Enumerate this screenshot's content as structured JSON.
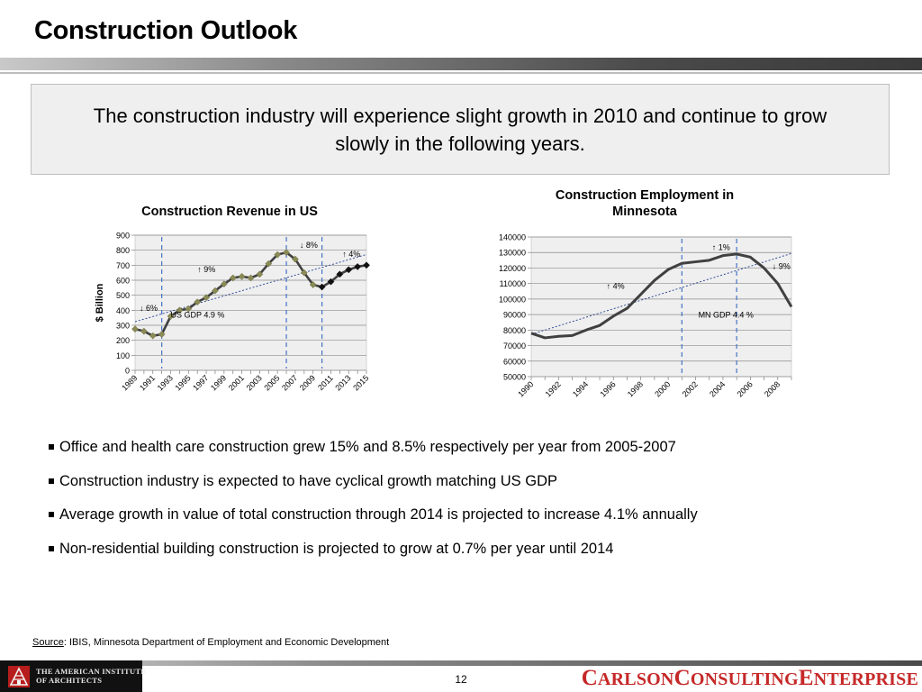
{
  "slide": {
    "title": "Construction Outlook",
    "callout": "The construction industry will experience slight growth in 2010 and continue to grow slowly in the following years.",
    "bullets": [
      "Office and health care construction grew 15% and 8.5% respectively per year from 2005-2007",
      "Construction industry is expected to have cyclical growth matching US GDP",
      "Average growth in value of total construction through 2014 is projected to increase 4.1% annually",
      "Non-residential building construction is projected to grow at 0.7% per year until 2014"
    ],
    "source_label": "Source",
    "source_text": ":  IBIS, Minnesota Department of Employment and Economic Development",
    "page_number": "12",
    "footer_org_line1": "THE AMERICAN INSTITUTE",
    "footer_org_line2": "OF ARCHITECTS",
    "logo": {
      "c1": "C",
      "rest1": "ARLSON",
      "c2": "C",
      "rest2": "ONSULTING",
      "c3": "E",
      "rest3": "NTERPRISE"
    }
  },
  "colors": {
    "accent_red": "#c62828",
    "line_dark": "#404040",
    "marker_olive": "#8b8b57",
    "dashed_blue": "#4472c4",
    "plot_bg": "#efefef"
  },
  "chart_data": [
    {
      "type": "line",
      "title": "Construction Revenue in US",
      "ylabel": "$ Billion",
      "xlabel": "",
      "ylim": [
        0,
        900
      ],
      "yticks": [
        0,
        100,
        200,
        300,
        400,
        500,
        600,
        700,
        800,
        900
      ],
      "x": [
        1989,
        1990,
        1991,
        1992,
        1993,
        1994,
        1995,
        1996,
        1997,
        1998,
        1999,
        2000,
        2001,
        2002,
        2003,
        2004,
        2005,
        2006,
        2007,
        2008,
        2009,
        2010,
        2011,
        2012,
        2013,
        2014,
        2015
      ],
      "xtick_labels": [
        "1989",
        "1991",
        "1993",
        "1995",
        "1997",
        "1999",
        "2001",
        "2003",
        "2005",
        "2007",
        "2009",
        "2011",
        "2013",
        "2015"
      ],
      "values": [
        275,
        260,
        230,
        240,
        360,
        400,
        410,
        455,
        485,
        530,
        575,
        615,
        625,
        615,
        640,
        710,
        770,
        785,
        740,
        650,
        570,
        555,
        590,
        640,
        670,
        690,
        700
      ],
      "projected_from_index": 21,
      "vertical_markers": [
        1992,
        2006,
        2010
      ],
      "trendline": {
        "name": "US GDP  4.9 %"
      },
      "annotations": [
        {
          "text": "↓ 6%",
          "x": 1989.5,
          "y": 395
        },
        {
          "text": "↑ 9%",
          "x": 1996,
          "y": 655
        },
        {
          "text": "↓ 8%",
          "x": 2007.5,
          "y": 815
        },
        {
          "text": "↑ 4%",
          "x": 2012.3,
          "y": 755
        },
        {
          "text": "US GDP  4.9 %",
          "x": 1993,
          "y": 350
        }
      ],
      "grid": true
    },
    {
      "type": "line",
      "title": "Construction Employment in Minnesota",
      "xlabel": "",
      "ylabel": "",
      "ylim": [
        50000,
        140000
      ],
      "yticks": [
        50000,
        60000,
        70000,
        80000,
        90000,
        100000,
        110000,
        120000,
        130000,
        140000
      ],
      "x": [
        1990,
        1991,
        1992,
        1993,
        1994,
        1995,
        1996,
        1997,
        1998,
        1999,
        2000,
        2001,
        2002,
        2003,
        2004,
        2005,
        2006,
        2007,
        2008,
        2009
      ],
      "xtick_labels": [
        "1990",
        "1992",
        "1994",
        "1996",
        "1998",
        "2000",
        "2002",
        "2004",
        "2006",
        "2008"
      ],
      "values": [
        78000,
        75000,
        76000,
        76500,
        80000,
        83000,
        89000,
        94000,
        103000,
        112000,
        119000,
        123000,
        124000,
        125000,
        128000,
        129000,
        127000,
        120000,
        110000,
        95000
      ],
      "vertical_markers": [
        2001,
        2005
      ],
      "trendline": {
        "name": "MN GDP  4.4 %"
      },
      "annotations": [
        {
          "text": "↑ 4%",
          "x": 1995.5,
          "y": 106500
        },
        {
          "text": "↑ 1%",
          "x": 2003.2,
          "y": 131500
        },
        {
          "text": "↓ 9%",
          "x": 2007.6,
          "y": 119500
        },
        {
          "text": "MN GDP  4.4 %",
          "x": 2002.2,
          "y": 88000
        }
      ],
      "grid": true
    }
  ]
}
